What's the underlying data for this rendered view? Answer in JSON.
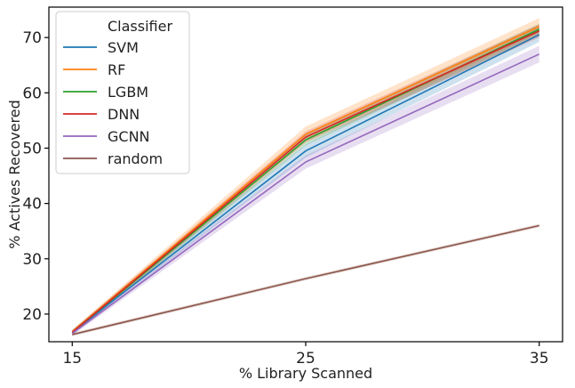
{
  "chart_data": {
    "type": "line",
    "title": "",
    "xlabel": "% Library Scanned",
    "ylabel": "% Actives Recovered",
    "x": [
      15,
      25,
      35
    ],
    "xticks": [
      "15",
      "25",
      "35"
    ],
    "yticks": [
      "20",
      "30",
      "40",
      "50",
      "60",
      "70"
    ],
    "xlim": [
      14,
      36
    ],
    "ylim": [
      15,
      75.5
    ],
    "grid": false,
    "legend": {
      "title": "Classifier",
      "placement": "top-left"
    },
    "series": [
      {
        "name": "SVM",
        "color": "#1f77b4",
        "values": [
          16.7,
          49.5,
          70.5
        ],
        "band": [
          [
            16.3,
            17.1
          ],
          [
            48.3,
            50.7
          ],
          [
            69.2,
            71.8
          ]
        ]
      },
      {
        "name": "RF",
        "color": "#ff7f0e",
        "values": [
          16.8,
          52.5,
          72.0
        ],
        "band": [
          [
            16.4,
            17.2
          ],
          [
            51.3,
            53.9
          ],
          [
            70.8,
            73.5
          ]
        ]
      },
      {
        "name": "LGBM",
        "color": "#2ca02c",
        "values": [
          16.7,
          51.5,
          71.5
        ],
        "band": [
          [
            16.3,
            17.1
          ],
          [
            50.5,
            52.5
          ],
          [
            70.5,
            72.5
          ]
        ]
      },
      {
        "name": "DNN",
        "color": "#d62728",
        "values": [
          16.7,
          52.0,
          71.2
        ],
        "band": [
          [
            16.3,
            17.1
          ],
          [
            51.0,
            53.0
          ],
          [
            70.0,
            72.4
          ]
        ]
      },
      {
        "name": "GCNN",
        "color": "#9467bd",
        "values": [
          16.5,
          47.5,
          67.0
        ],
        "band": [
          [
            16.1,
            16.9
          ],
          [
            46.3,
            48.7
          ],
          [
            65.5,
            68.5
          ]
        ]
      },
      {
        "name": "random",
        "color": "#8c564b",
        "values": [
          16.3,
          26.4,
          36.0
        ],
        "band": [
          [
            16.0,
            16.6
          ],
          [
            26.1,
            26.7
          ],
          [
            35.7,
            36.3
          ]
        ]
      }
    ]
  }
}
